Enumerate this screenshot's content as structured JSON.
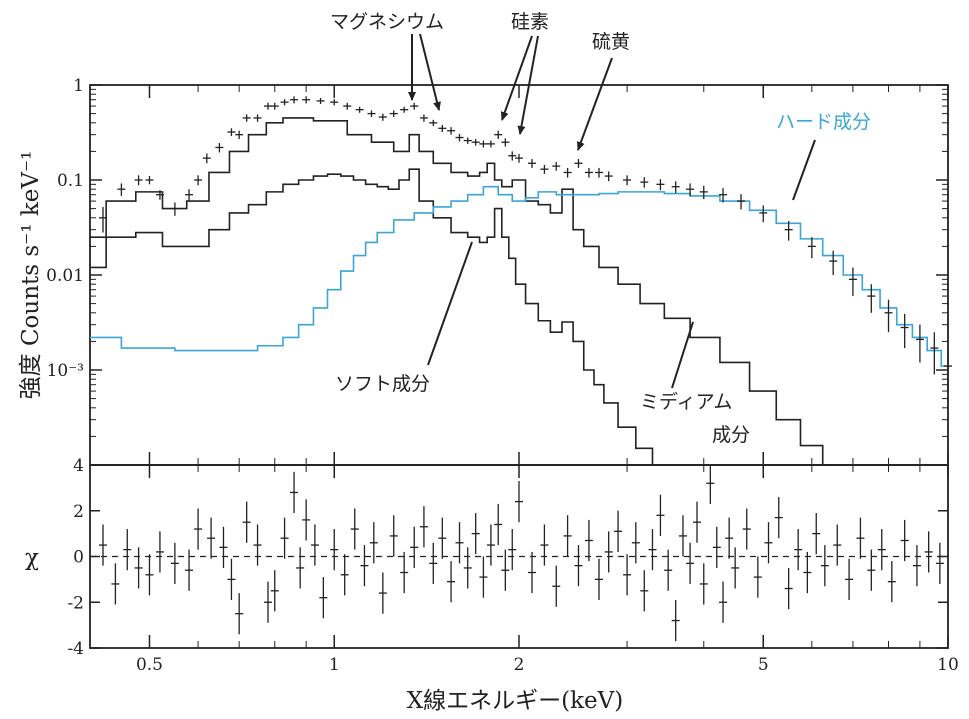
{
  "chart_data": [
    {
      "type": "line",
      "panel": "spectrum",
      "ylabel": "強度 Counts s⁻¹ keV⁻¹",
      "x_scale": "log",
      "y_scale": "log",
      "xlim": [
        0.4,
        10
      ],
      "ylim": [
        0.0001,
        1
      ],
      "y_ticks": [
        {
          "value": 1,
          "label": "1"
        },
        {
          "value": 0.1,
          "label": "0.1"
        },
        {
          "value": 0.01,
          "label": "0.01"
        },
        {
          "value": 0.001,
          "label": "10⁻³"
        }
      ],
      "colors": {
        "data": "#222222",
        "soft": "#222222",
        "medium": "#222222",
        "hard": "#3aa6d6"
      },
      "series": [
        {
          "key": "data",
          "x": [
            0.42,
            0.45,
            0.48,
            0.5,
            0.52,
            0.55,
            0.58,
            0.6,
            0.62,
            0.65,
            0.68,
            0.7,
            0.72,
            0.75,
            0.78,
            0.8,
            0.83,
            0.86,
            0.9,
            0.95,
            1.0,
            1.05,
            1.1,
            1.15,
            1.2,
            1.25,
            1.3,
            1.35,
            1.4,
            1.45,
            1.5,
            1.55,
            1.6,
            1.65,
            1.7,
            1.75,
            1.8,
            1.85,
            1.9,
            1.95,
            2.0,
            2.1,
            2.2,
            2.3,
            2.4,
            2.5,
            2.6,
            2.7,
            2.8,
            3.0,
            3.2,
            3.4,
            3.6,
            3.8,
            4.0,
            4.3,
            4.6,
            5.0,
            5.5,
            6.0,
            6.5,
            7.0,
            7.5,
            8.0,
            8.5,
            9.0,
            9.5,
            10.0
          ],
          "y": [
            0.04,
            0.08,
            0.1,
            0.1,
            0.07,
            0.05,
            0.07,
            0.1,
            0.17,
            0.22,
            0.32,
            0.3,
            0.45,
            0.45,
            0.6,
            0.6,
            0.66,
            0.7,
            0.7,
            0.68,
            0.66,
            0.6,
            0.55,
            0.5,
            0.46,
            0.5,
            0.55,
            0.6,
            0.45,
            0.4,
            0.35,
            0.33,
            0.28,
            0.26,
            0.25,
            0.24,
            0.24,
            0.3,
            0.25,
            0.18,
            0.17,
            0.15,
            0.13,
            0.14,
            0.12,
            0.15,
            0.12,
            0.12,
            0.11,
            0.1,
            0.095,
            0.09,
            0.085,
            0.08,
            0.075,
            0.07,
            0.06,
            0.045,
            0.03,
            0.02,
            0.014,
            0.009,
            0.006,
            0.004,
            0.0028,
            0.0021,
            0.0017,
            0.0011
          ],
          "yerr": [
            0.012,
            0.012,
            0.012,
            0.01,
            0.008,
            0.008,
            0.01,
            0.012,
            0.02,
            0.025,
            0.03,
            0.03,
            0.04,
            0.04,
            0.05,
            0.05,
            0.05,
            0.06,
            0.06,
            0.05,
            0.05,
            0.05,
            0.04,
            0.04,
            0.04,
            0.04,
            0.04,
            0.05,
            0.04,
            0.03,
            0.03,
            0.03,
            0.025,
            0.02,
            0.02,
            0.02,
            0.02,
            0.03,
            0.025,
            0.02,
            0.018,
            0.016,
            0.014,
            0.015,
            0.014,
            0.016,
            0.014,
            0.014,
            0.013,
            0.012,
            0.012,
            0.012,
            0.012,
            0.012,
            0.012,
            0.012,
            0.011,
            0.009,
            0.007,
            0.005,
            0.004,
            0.003,
            0.002,
            0.0015,
            0.0011,
            0.0009,
            0.0008,
            0.0005
          ]
        },
        {
          "key": "soft",
          "x": [
            0.4,
            0.45,
            0.5,
            0.55,
            0.6,
            0.65,
            0.7,
            0.75,
            0.8,
            0.85,
            0.9,
            0.95,
            1.0,
            1.05,
            1.1,
            1.15,
            1.2,
            1.25,
            1.3,
            1.35,
            1.4,
            1.5,
            1.6,
            1.7,
            1.75,
            1.8,
            1.85,
            1.9,
            1.95,
            2.0,
            2.1,
            2.2,
            2.3,
            2.4,
            2.5,
            2.6,
            2.7,
            2.8,
            3.0,
            3.2,
            3.4
          ],
          "y": [
            0.012,
            0.025,
            0.028,
            0.02,
            0.02,
            0.03,
            0.045,
            0.055,
            0.075,
            0.09,
            0.1,
            0.11,
            0.115,
            0.11,
            0.1,
            0.09,
            0.085,
            0.08,
            0.1,
            0.13,
            0.06,
            0.04,
            0.028,
            0.025,
            0.022,
            0.025,
            0.05,
            0.025,
            0.015,
            0.008,
            0.005,
            0.0033,
            0.0025,
            0.0032,
            0.002,
            0.001,
            0.0007,
            0.00045,
            0.00025,
            0.00015,
            0.0001
          ]
        },
        {
          "key": "medium",
          "x": [
            0.4,
            0.45,
            0.5,
            0.55,
            0.6,
            0.65,
            0.7,
            0.75,
            0.8,
            0.85,
            0.9,
            0.95,
            1.0,
            1.1,
            1.2,
            1.3,
            1.35,
            1.4,
            1.5,
            1.6,
            1.7,
            1.75,
            1.8,
            1.85,
            1.9,
            2.0,
            2.1,
            2.2,
            2.3,
            2.4,
            2.5,
            2.6,
            2.8,
            3.0,
            3.3,
            3.6,
            4.0,
            4.5,
            5.0,
            5.5,
            6.0,
            6.5
          ],
          "y": [
            0.025,
            0.06,
            0.075,
            0.05,
            0.06,
            0.12,
            0.2,
            0.3,
            0.4,
            0.45,
            0.45,
            0.42,
            0.42,
            0.3,
            0.25,
            0.2,
            0.3,
            0.2,
            0.15,
            0.12,
            0.11,
            0.12,
            0.15,
            0.1,
            0.085,
            0.1,
            0.06,
            0.055,
            0.045,
            0.08,
            0.03,
            0.02,
            0.012,
            0.008,
            0.005,
            0.0035,
            0.0022,
            0.0012,
            0.0006,
            0.0003,
            0.00016,
            0.0001
          ]
        },
        {
          "key": "hard",
          "x": [
            0.4,
            0.5,
            0.6,
            0.7,
            0.8,
            0.85,
            0.9,
            0.95,
            1.0,
            1.05,
            1.1,
            1.15,
            1.2,
            1.3,
            1.4,
            1.5,
            1.6,
            1.7,
            1.8,
            1.9,
            2.0,
            2.1,
            2.2,
            2.4,
            2.6,
            2.8,
            3.0,
            3.3,
            3.6,
            4.0,
            4.5,
            5.0,
            5.5,
            6.0,
            6.5,
            7.0,
            7.5,
            8.0,
            8.5,
            9.0,
            9.5,
            10.0
          ],
          "y": [
            0.0022,
            0.0017,
            0.0016,
            0.0016,
            0.0018,
            0.0022,
            0.003,
            0.0045,
            0.007,
            0.011,
            0.016,
            0.022,
            0.028,
            0.038,
            0.045,
            0.052,
            0.06,
            0.07,
            0.085,
            0.07,
            0.06,
            0.065,
            0.075,
            0.07,
            0.07,
            0.072,
            0.075,
            0.075,
            0.072,
            0.068,
            0.06,
            0.048,
            0.035,
            0.024,
            0.016,
            0.01,
            0.007,
            0.0045,
            0.003,
            0.0022,
            0.0016,
            0.0011
          ]
        }
      ],
      "labels": {
        "mg": "マグネシウム",
        "si": "硅素",
        "s": "硫黄",
        "hard": "ハード成分",
        "soft": "ソフト成分",
        "medium_1": "ミディアム",
        "medium_2": "成分"
      }
    },
    {
      "type": "scatter",
      "panel": "residuals",
      "ylabel": "χ",
      "xlabel": "X線エネルギー(keV)",
      "x_scale": "log",
      "xlim": [
        0.4,
        10
      ],
      "ylim": [
        -4,
        4
      ],
      "y_ticks": [
        4,
        2,
        0,
        -2,
        -4
      ],
      "x_ticks": [
        {
          "value": 0.5,
          "label": "0.5"
        },
        {
          "value": 1,
          "label": "1"
        },
        {
          "value": 2,
          "label": "2"
        },
        {
          "value": 5,
          "label": "5"
        },
        {
          "value": 10,
          "label": "10"
        }
      ],
      "zero_line": "dashed",
      "points": {
        "x": [
          0.42,
          0.44,
          0.46,
          0.48,
          0.5,
          0.52,
          0.55,
          0.58,
          0.6,
          0.63,
          0.66,
          0.68,
          0.7,
          0.72,
          0.75,
          0.78,
          0.8,
          0.83,
          0.86,
          0.88,
          0.9,
          0.93,
          0.96,
          1.0,
          1.04,
          1.08,
          1.12,
          1.16,
          1.2,
          1.25,
          1.3,
          1.35,
          1.4,
          1.45,
          1.5,
          1.55,
          1.6,
          1.65,
          1.7,
          1.75,
          1.8,
          1.85,
          1.9,
          1.95,
          2.0,
          2.1,
          2.2,
          2.3,
          2.4,
          2.5,
          2.6,
          2.7,
          2.8,
          2.9,
          3.0,
          3.1,
          3.2,
          3.3,
          3.4,
          3.5,
          3.6,
          3.7,
          3.8,
          3.9,
          4.0,
          4.1,
          4.2,
          4.3,
          4.4,
          4.5,
          4.7,
          4.9,
          5.1,
          5.3,
          5.5,
          5.7,
          5.9,
          6.1,
          6.3,
          6.6,
          6.9,
          7.2,
          7.5,
          7.8,
          8.1,
          8.5,
          8.9,
          9.3,
          9.7
        ],
        "y": [
          0.5,
          -1.2,
          0.3,
          -0.5,
          -0.8,
          0.2,
          -0.3,
          -0.6,
          1.2,
          0.8,
          0.4,
          -1.0,
          -2.5,
          1.5,
          0.5,
          -2.0,
          -1.5,
          0.8,
          2.8,
          -0.5,
          1.6,
          0.5,
          -1.8,
          0.3,
          -0.8,
          1.2,
          -0.4,
          0.6,
          -1.6,
          0.9,
          -0.7,
          0.4,
          1.3,
          -0.3,
          0.8,
          -1.1,
          0.6,
          -0.5,
          1.0,
          -0.9,
          0.5,
          1.4,
          -0.6,
          0.3,
          2.4,
          -0.7,
          0.5,
          -1.3,
          0.9,
          -0.4,
          0.7,
          -1.0,
          0.2,
          1.1,
          -0.8,
          0.6,
          -1.5,
          0.3,
          1.8,
          -0.6,
          -2.8,
          0.9,
          -0.3,
          1.5,
          -1.2,
          3.2,
          0.4,
          -2.0,
          0.8,
          -0.5,
          1.2,
          -0.9,
          0.6,
          1.7,
          -1.4,
          0.3,
          -0.7,
          1.0,
          -0.4,
          0.5,
          -1.0,
          0.8,
          -0.6,
          0.3,
          -1.1,
          0.7,
          -0.4,
          0.2,
          -0.3
        ],
        "yerr": [
          0.9,
          0.9,
          0.9,
          0.9,
          0.9,
          0.9,
          0.9,
          0.9,
          0.9,
          0.9,
          0.9,
          0.9,
          0.9,
          0.9,
          0.9,
          0.9,
          0.9,
          0.9,
          0.9,
          0.9,
          0.9,
          0.9,
          0.9,
          0.9,
          0.9,
          0.9,
          0.9,
          0.9,
          0.9,
          0.9,
          0.9,
          0.9,
          0.9,
          0.9,
          0.9,
          0.9,
          0.9,
          0.9,
          0.9,
          0.9,
          0.9,
          0.9,
          0.9,
          0.9,
          0.9,
          0.9,
          0.9,
          0.9,
          0.9,
          0.9,
          0.9,
          0.9,
          0.9,
          0.9,
          0.9,
          0.9,
          0.9,
          0.9,
          0.9,
          0.9,
          0.9,
          0.9,
          0.9,
          0.9,
          0.9,
          0.9,
          0.9,
          0.9,
          0.9,
          0.9,
          0.9,
          0.9,
          0.9,
          0.9,
          0.9,
          0.9,
          0.9,
          0.9,
          0.9,
          0.9,
          0.9,
          0.9,
          0.9,
          0.9,
          0.9,
          0.9,
          0.9,
          0.9,
          0.9
        ]
      }
    }
  ]
}
